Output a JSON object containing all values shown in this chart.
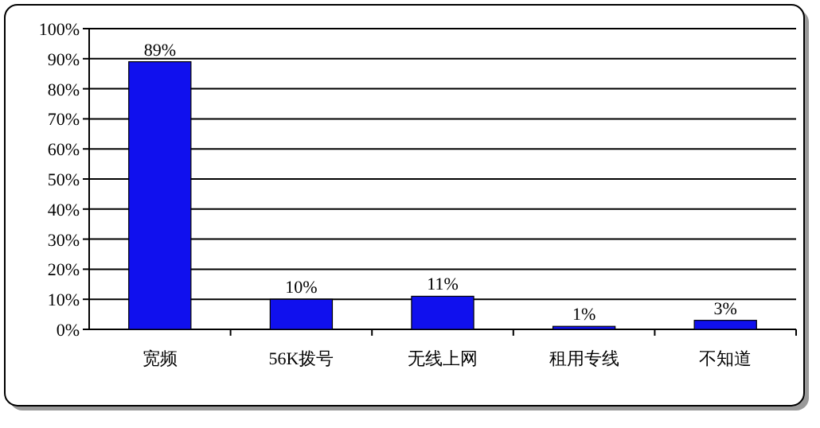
{
  "chart_data": {
    "type": "bar",
    "categories": [
      "宽频",
      "56K拨号",
      "无线上网",
      "租用专线",
      "不知道"
    ],
    "values": [
      89,
      10,
      11,
      1,
      3
    ],
    "value_labels": [
      "89%",
      "10%",
      "11%",
      "1%",
      "3%"
    ],
    "color": "#1010ee",
    "ylim": [
      0,
      100
    ],
    "yticks": [
      {
        "value": 0,
        "label": "0%"
      },
      {
        "value": 10,
        "label": "10%"
      },
      {
        "value": 20,
        "label": "20%"
      },
      {
        "value": 30,
        "label": "30%"
      },
      {
        "value": 40,
        "label": "40%"
      },
      {
        "value": 50,
        "label": "50%"
      },
      {
        "value": 60,
        "label": "60%"
      },
      {
        "value": 70,
        "label": "70%"
      },
      {
        "value": 80,
        "label": "80%"
      },
      {
        "value": 90,
        "label": "90%"
      },
      {
        "value": 100,
        "label": "100%"
      }
    ],
    "grid": "y"
  }
}
